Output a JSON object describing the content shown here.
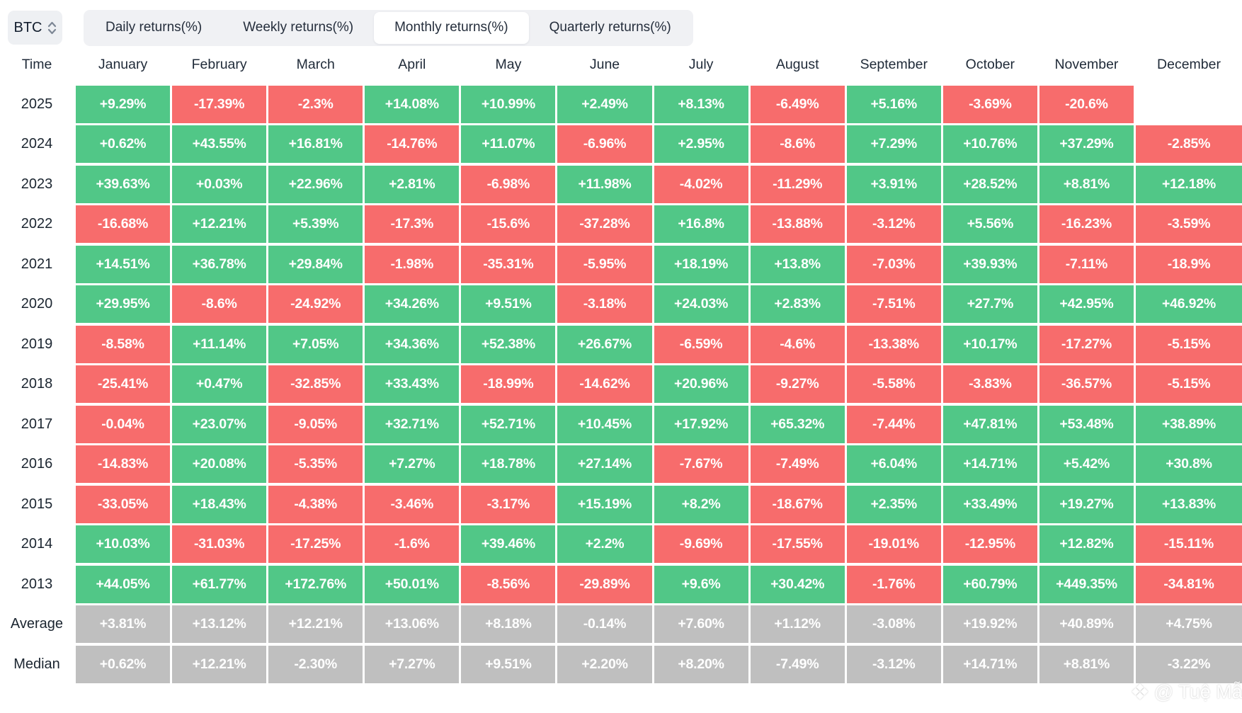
{
  "controls": {
    "symbol": "BTC",
    "tabs": [
      {
        "label": "Daily returns(%)",
        "active": false
      },
      {
        "label": "Weekly returns(%)",
        "active": false
      },
      {
        "label": "Monthly returns(%)",
        "active": true
      },
      {
        "label": "Quarterly returns(%)",
        "active": false
      }
    ]
  },
  "table": {
    "time_header": "Time",
    "months": [
      "January",
      "February",
      "March",
      "April",
      "May",
      "June",
      "July",
      "August",
      "September",
      "October",
      "November",
      "December"
    ],
    "rows": [
      {
        "label": "2025",
        "type": "year",
        "values": [
          "+9.29%",
          "-17.39%",
          "-2.3%",
          "+14.08%",
          "+10.99%",
          "+2.49%",
          "+8.13%",
          "-6.49%",
          "+5.16%",
          "-3.69%",
          "-20.6%",
          ""
        ]
      },
      {
        "label": "2024",
        "type": "year",
        "values": [
          "+0.62%",
          "+43.55%",
          "+16.81%",
          "-14.76%",
          "+11.07%",
          "-6.96%",
          "+2.95%",
          "-8.6%",
          "+7.29%",
          "+10.76%",
          "+37.29%",
          "-2.85%"
        ]
      },
      {
        "label": "2023",
        "type": "year",
        "values": [
          "+39.63%",
          "+0.03%",
          "+22.96%",
          "+2.81%",
          "-6.98%",
          "+11.98%",
          "-4.02%",
          "-11.29%",
          "+3.91%",
          "+28.52%",
          "+8.81%",
          "+12.18%"
        ]
      },
      {
        "label": "2022",
        "type": "year",
        "values": [
          "-16.68%",
          "+12.21%",
          "+5.39%",
          "-17.3%",
          "-15.6%",
          "-37.28%",
          "+16.8%",
          "-13.88%",
          "-3.12%",
          "+5.56%",
          "-16.23%",
          "-3.59%"
        ]
      },
      {
        "label": "2021",
        "type": "year",
        "values": [
          "+14.51%",
          "+36.78%",
          "+29.84%",
          "-1.98%",
          "-35.31%",
          "-5.95%",
          "+18.19%",
          "+13.8%",
          "-7.03%",
          "+39.93%",
          "-7.11%",
          "-18.9%"
        ]
      },
      {
        "label": "2020",
        "type": "year",
        "values": [
          "+29.95%",
          "-8.6%",
          "-24.92%",
          "+34.26%",
          "+9.51%",
          "-3.18%",
          "+24.03%",
          "+2.83%",
          "-7.51%",
          "+27.7%",
          "+42.95%",
          "+46.92%"
        ]
      },
      {
        "label": "2019",
        "type": "year",
        "values": [
          "-8.58%",
          "+11.14%",
          "+7.05%",
          "+34.36%",
          "+52.38%",
          "+26.67%",
          "-6.59%",
          "-4.6%",
          "-13.38%",
          "+10.17%",
          "-17.27%",
          "-5.15%"
        ]
      },
      {
        "label": "2018",
        "type": "year",
        "values": [
          "-25.41%",
          "+0.47%",
          "-32.85%",
          "+33.43%",
          "-18.99%",
          "-14.62%",
          "+20.96%",
          "-9.27%",
          "-5.58%",
          "-3.83%",
          "-36.57%",
          "-5.15%"
        ]
      },
      {
        "label": "2017",
        "type": "year",
        "values": [
          "-0.04%",
          "+23.07%",
          "-9.05%",
          "+32.71%",
          "+52.71%",
          "+10.45%",
          "+17.92%",
          "+65.32%",
          "-7.44%",
          "+47.81%",
          "+53.48%",
          "+38.89%"
        ]
      },
      {
        "label": "2016",
        "type": "year",
        "values": [
          "-14.83%",
          "+20.08%",
          "-5.35%",
          "+7.27%",
          "+18.78%",
          "+27.14%",
          "-7.67%",
          "-7.49%",
          "+6.04%",
          "+14.71%",
          "+5.42%",
          "+30.8%"
        ]
      },
      {
        "label": "2015",
        "type": "year",
        "values": [
          "-33.05%",
          "+18.43%",
          "-4.38%",
          "-3.46%",
          "-3.17%",
          "+15.19%",
          "+8.2%",
          "-18.67%",
          "+2.35%",
          "+33.49%",
          "+19.27%",
          "+13.83%"
        ]
      },
      {
        "label": "2014",
        "type": "year",
        "values": [
          "+10.03%",
          "-31.03%",
          "-17.25%",
          "-1.6%",
          "+39.46%",
          "+2.2%",
          "-9.69%",
          "-17.55%",
          "-19.01%",
          "-12.95%",
          "+12.82%",
          "-15.11%"
        ]
      },
      {
        "label": "2013",
        "type": "year",
        "values": [
          "+44.05%",
          "+61.77%",
          "+172.76%",
          "+50.01%",
          "-8.56%",
          "-29.89%",
          "+9.6%",
          "+30.42%",
          "-1.76%",
          "+60.79%",
          "+449.35%",
          "-34.81%"
        ]
      },
      {
        "label": "Average",
        "type": "summary",
        "values": [
          "+3.81%",
          "+13.12%",
          "+12.21%",
          "+13.06%",
          "+8.18%",
          "-0.14%",
          "+7.60%",
          "+1.12%",
          "-3.08%",
          "+19.92%",
          "+40.89%",
          "+4.75%"
        ]
      },
      {
        "label": "Median",
        "type": "summary",
        "values": [
          "+0.62%",
          "+12.21%",
          "-2.30%",
          "+7.27%",
          "+9.51%",
          "+2.20%",
          "+8.20%",
          "-7.49%",
          "-3.12%",
          "+14.71%",
          "+8.81%",
          "-3.22%"
        ]
      }
    ]
  },
  "colors": {
    "positive": "#51c787",
    "negative": "#f76c6c",
    "summary": "#bfbfbf"
  },
  "watermark": {
    "icon": "binance-diamond-icon",
    "icon_glyph": "❖",
    "text": "@ Tuệ Mẫn"
  }
}
